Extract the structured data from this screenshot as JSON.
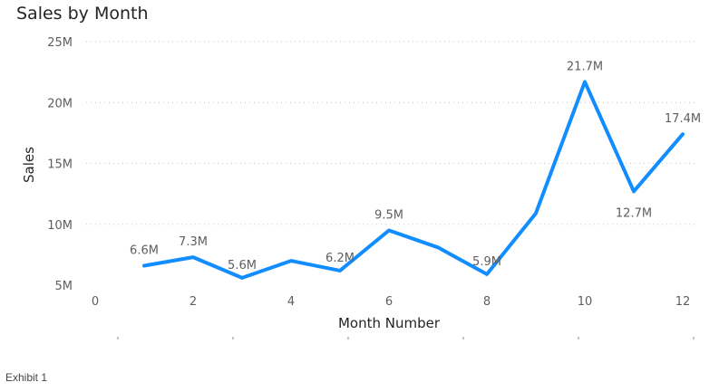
{
  "chart_data": {
    "type": "line",
    "title": "Sales by Month",
    "xlabel": "Month Number",
    "ylabel": "Sales",
    "x": [
      1,
      2,
      3,
      4,
      5,
      6,
      7,
      8,
      9,
      10,
      11,
      12
    ],
    "values": [
      6.6,
      7.3,
      5.6,
      7.0,
      6.2,
      9.5,
      8.1,
      5.9,
      10.9,
      21.7,
      12.7,
      17.4
    ],
    "value_unit": "M",
    "data_labels": [
      "6.6M",
      "7.3M",
      "5.6M",
      "",
      "6.2M",
      "9.5M",
      "",
      "5.9M",
      "",
      "21.7M",
      "12.7M",
      "17.4M"
    ],
    "xlim": [
      0,
      12
    ],
    "ylim": [
      5,
      25
    ],
    "x_ticks": [
      0,
      2,
      4,
      6,
      8,
      10,
      12
    ],
    "x_tick_labels": [
      "0",
      "2",
      "4",
      "6",
      "8",
      "10",
      "12"
    ],
    "y_ticks": [
      5,
      10,
      15,
      20,
      25
    ],
    "y_tick_labels": [
      "5M",
      "10M",
      "15M",
      "20M",
      "25M"
    ],
    "grid": true,
    "line_color": "#118DFF"
  },
  "caption": "Exhibit 1"
}
